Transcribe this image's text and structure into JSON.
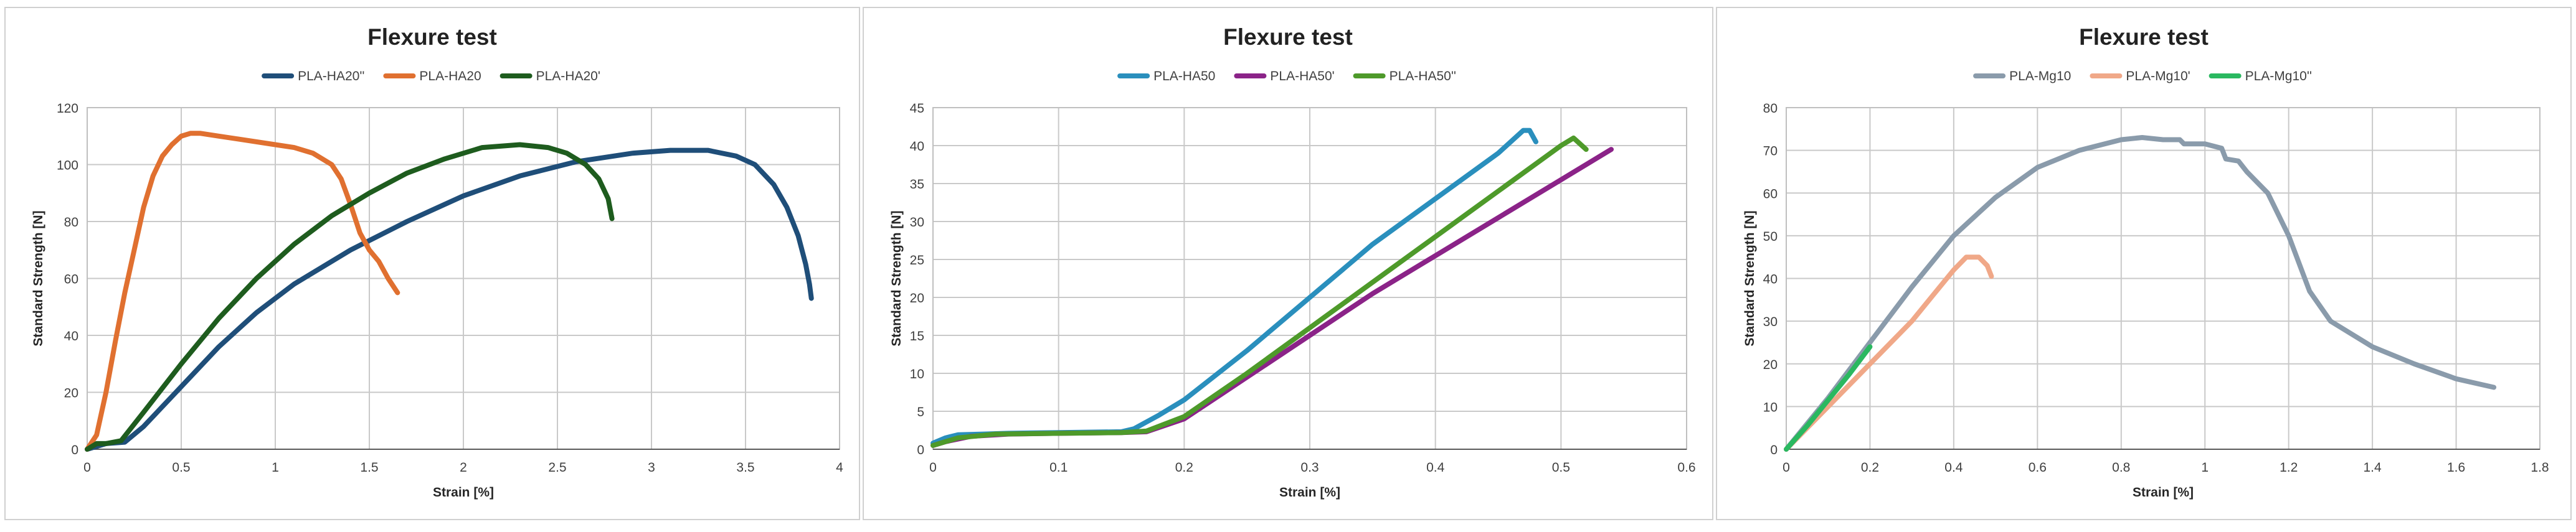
{
  "chart_data": [
    {
      "type": "line",
      "title": "Flexure test",
      "xlabel": "Strain [%]",
      "ylabel": "Standard Strength [N]",
      "xlim": [
        0,
        4
      ],
      "ylim": [
        0,
        120
      ],
      "xticks": [
        0,
        0.5,
        1,
        1.5,
        2,
        2.5,
        3,
        3.5,
        4
      ],
      "xtick_labels": [
        "0",
        "0.5",
        "1",
        "1.5",
        "2",
        "2.5",
        "3",
        "3.5",
        "4"
      ],
      "yticks": [
        0,
        20,
        40,
        60,
        80,
        100,
        120
      ],
      "ytick_labels": [
        "0",
        "20",
        "40",
        "60",
        "80",
        "100",
        "120"
      ],
      "grid": true,
      "legend_position": "top",
      "series": [
        {
          "name": "PLA-HA20''",
          "color": "#1f4e79",
          "x": [
            0,
            0.1,
            0.2,
            0.3,
            0.5,
            0.7,
            0.9,
            1.1,
            1.4,
            1.7,
            2.0,
            2.3,
            2.6,
            2.9,
            3.1,
            3.3,
            3.45,
            3.55,
            3.65,
            3.72,
            3.78,
            3.82,
            3.84,
            3.85
          ],
          "y": [
            0,
            2,
            2.5,
            8,
            22,
            36,
            48,
            58,
            70,
            80,
            89,
            96,
            101,
            104,
            105,
            105,
            103,
            100,
            93,
            85,
            75,
            65,
            58,
            53
          ]
        },
        {
          "name": "PLA-HA20",
          "color": "#e07030",
          "x": [
            0,
            0.05,
            0.1,
            0.15,
            0.2,
            0.25,
            0.3,
            0.35,
            0.4,
            0.45,
            0.5,
            0.55,
            0.6,
            0.7,
            0.8,
            1.0,
            1.1,
            1.2,
            1.3,
            1.35,
            1.4,
            1.45,
            1.5,
            1.55,
            1.6,
            1.65
          ],
          "y": [
            0,
            5,
            20,
            38,
            55,
            70,
            85,
            96,
            103,
            107,
            110,
            111,
            111,
            110,
            109,
            107,
            106,
            104,
            100,
            95,
            86,
            76,
            70,
            66,
            60,
            55
          ]
        },
        {
          "name": "PLA-HA20'",
          "color": "#1e5c1e",
          "x": [
            0,
            0.05,
            0.1,
            0.18,
            0.3,
            0.5,
            0.7,
            0.9,
            1.1,
            1.3,
            1.5,
            1.7,
            1.9,
            2.1,
            2.3,
            2.45,
            2.55,
            2.65,
            2.72,
            2.77,
            2.79
          ],
          "y": [
            0,
            2,
            2,
            3,
            13,
            30,
            46,
            60,
            72,
            82,
            90,
            97,
            102,
            106,
            107,
            106,
            104,
            100,
            95,
            88,
            81
          ]
        }
      ]
    },
    {
      "type": "line",
      "title": "Flexure test",
      "xlabel": "Strain [%]",
      "ylabel": "Standard Strength [N]",
      "xlim": [
        0,
        0.6
      ],
      "ylim": [
        0,
        45
      ],
      "xticks": [
        0,
        0.1,
        0.2,
        0.3,
        0.4,
        0.5,
        0.6
      ],
      "xtick_labels": [
        "0",
        "0.1",
        "0.2",
        "0.3",
        "0.4",
        "0.5",
        "0.6"
      ],
      "yticks": [
        0,
        5,
        10,
        15,
        20,
        25,
        30,
        35,
        40,
        45
      ],
      "ytick_labels": [
        "0",
        "5",
        "10",
        "15",
        "20",
        "25",
        "30",
        "35",
        "40",
        "45"
      ],
      "grid": true,
      "legend_position": "top",
      "series": [
        {
          "name": "PLA-HA50",
          "color": "#2a8fbd",
          "x": [
            0,
            0.01,
            0.02,
            0.04,
            0.06,
            0.1,
            0.15,
            0.16,
            0.18,
            0.2,
            0.25,
            0.3,
            0.35,
            0.4,
            0.45,
            0.47,
            0.475,
            0.48
          ],
          "y": [
            0.8,
            1.5,
            1.9,
            2.0,
            2.1,
            2.2,
            2.3,
            2.7,
            4.5,
            6.5,
            13,
            20,
            27,
            33,
            39,
            42,
            42,
            40.5
          ]
        },
        {
          "name": "PLA-HA50'",
          "color": "#8b2388",
          "x": [
            0,
            0.01,
            0.03,
            0.06,
            0.1,
            0.15,
            0.17,
            0.2,
            0.25,
            0.3,
            0.35,
            0.4,
            0.45,
            0.5,
            0.54
          ],
          "y": [
            0.5,
            1.0,
            1.7,
            2.0,
            2.1,
            2.2,
            2.3,
            4.0,
            9.5,
            15,
            20.5,
            25.5,
            30.5,
            35.5,
            39.5
          ]
        },
        {
          "name": "PLA-HA50''",
          "color": "#4e9a2a",
          "x": [
            0,
            0.02,
            0.05,
            0.1,
            0.15,
            0.17,
            0.2,
            0.25,
            0.3,
            0.35,
            0.4,
            0.45,
            0.5,
            0.51,
            0.52
          ],
          "y": [
            0.5,
            1.5,
            2.0,
            2.1,
            2.2,
            2.4,
            4.3,
            10,
            16,
            22,
            28,
            34,
            40,
            41,
            39.5
          ]
        }
      ]
    },
    {
      "type": "line",
      "title": "Flexure test",
      "xlabel": "Strain [%]",
      "ylabel": "Standard Strength [N]",
      "xlim": [
        0,
        1.8
      ],
      "ylim": [
        0,
        80
      ],
      "xticks": [
        0,
        0.2,
        0.4,
        0.6,
        0.8,
        1,
        1.2,
        1.4,
        1.6,
        1.8
      ],
      "xtick_labels": [
        "0",
        "0.2",
        "0.4",
        "0.6",
        "0.8",
        "1",
        "1.2",
        "1.4",
        "1.6",
        "1.8"
      ],
      "yticks": [
        0,
        10,
        20,
        30,
        40,
        50,
        60,
        70,
        80
      ],
      "ytick_labels": [
        "0",
        "10",
        "20",
        "30",
        "40",
        "50",
        "60",
        "70",
        "80"
      ],
      "grid": true,
      "legend_position": "top",
      "series": [
        {
          "name": "PLA-Mg10",
          "color": "#8a9bab",
          "x": [
            0,
            0.1,
            0.2,
            0.3,
            0.4,
            0.5,
            0.6,
            0.7,
            0.8,
            0.85,
            0.9,
            0.94,
            0.95,
            1.0,
            1.04,
            1.05,
            1.08,
            1.1,
            1.15,
            1.2,
            1.25,
            1.3,
            1.4,
            1.5,
            1.6,
            1.69
          ],
          "y": [
            0,
            12,
            25,
            38,
            50,
            59,
            66,
            70,
            72.5,
            73,
            72.5,
            72.5,
            71.5,
            71.5,
            70.5,
            68,
            67.5,
            65,
            60,
            50,
            37,
            30,
            24,
            20,
            16.5,
            14.5
          ]
        },
        {
          "name": "PLA-Mg10'",
          "color": "#f0a888",
          "x": [
            0,
            0.05,
            0.1,
            0.2,
            0.3,
            0.35,
            0.4,
            0.43,
            0.46,
            0.48,
            0.49
          ],
          "y": [
            0,
            5,
            10,
            20,
            30,
            36,
            42,
            45,
            45,
            43,
            40.5
          ]
        },
        {
          "name": "PLA-Mg10''",
          "color": "#2ab860",
          "x": [
            0,
            0.05,
            0.1,
            0.15,
            0.2
          ],
          "y": [
            0,
            5.5,
            11.5,
            17.5,
            24
          ]
        }
      ]
    }
  ]
}
